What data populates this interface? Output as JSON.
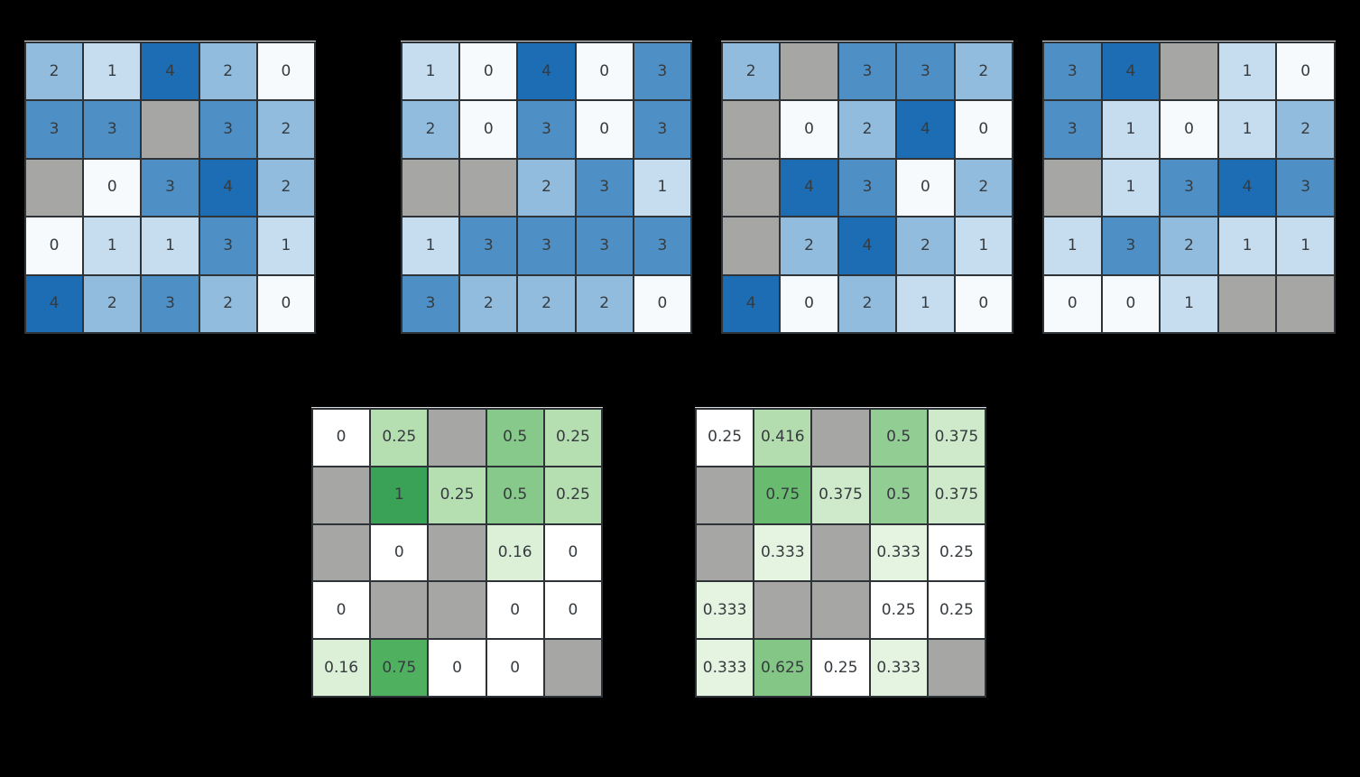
{
  "page": {
    "background_color": "#000000",
    "description_visible_text_only": true
  },
  "style": {
    "gridline_color": "#2e3338",
    "masked_cell_color": "#a6a6a5",
    "cell_text_color": "#363b3f"
  },
  "palettes": {
    "blues": {
      "0": "#f6fafd",
      "1": "#c6dcef",
      "2": "#92bcde",
      "3": "#4e90c6",
      "4": "#1c6db4"
    },
    "greens_left": {
      "0": "#ffffff",
      "0.16": "#dcf0d8",
      "0.25": "#b6dfb1",
      "0.5": "#87c98a",
      "0.75": "#4fb160",
      "1": "#3aa257"
    },
    "greens_right": {
      "0.25": "#ffffff",
      "0.333": "#e5f4e0",
      "0.375": "#cfeaca",
      "0.416": "#b3ddaf",
      "0.5": "#92cd93",
      "0.625": "#83c685",
      "0.75": "#69bc6f"
    }
  },
  "chart_data": [
    {
      "type": "heatmap",
      "name": "count-heatmap-1",
      "grid_size": [
        5,
        5
      ],
      "colormap": "blues",
      "value_range": [
        0,
        4
      ],
      "masked_cells_shown_gray": true,
      "values": [
        [
          2,
          1,
          4,
          2,
          0
        ],
        [
          3,
          3,
          null,
          3,
          2
        ],
        [
          null,
          0,
          3,
          4,
          2
        ],
        [
          0,
          1,
          1,
          3,
          1
        ],
        [
          4,
          2,
          3,
          2,
          0
        ]
      ]
    },
    {
      "type": "heatmap",
      "name": "count-heatmap-2",
      "grid_size": [
        5,
        5
      ],
      "colormap": "blues",
      "value_range": [
        0,
        4
      ],
      "masked_cells_shown_gray": true,
      "values": [
        [
          1,
          0,
          4,
          0,
          3
        ],
        [
          2,
          0,
          3,
          0,
          3
        ],
        [
          null,
          null,
          2,
          3,
          1
        ],
        [
          1,
          3,
          3,
          3,
          3
        ],
        [
          3,
          2,
          2,
          2,
          0
        ]
      ]
    },
    {
      "type": "heatmap",
      "name": "count-heatmap-3",
      "grid_size": [
        5,
        5
      ],
      "colormap": "blues",
      "value_range": [
        0,
        4
      ],
      "masked_cells_shown_gray": true,
      "values": [
        [
          2,
          null,
          3,
          3,
          2
        ],
        [
          null,
          0,
          2,
          4,
          0
        ],
        [
          null,
          4,
          3,
          0,
          2
        ],
        [
          null,
          2,
          4,
          2,
          1
        ],
        [
          4,
          0,
          2,
          1,
          0
        ]
      ]
    },
    {
      "type": "heatmap",
      "name": "count-heatmap-4",
      "grid_size": [
        5,
        5
      ],
      "colormap": "blues",
      "value_range": [
        0,
        4
      ],
      "masked_cells_shown_gray": true,
      "values": [
        [
          3,
          4,
          null,
          1,
          0
        ],
        [
          3,
          1,
          0,
          1,
          2
        ],
        [
          null,
          1,
          3,
          4,
          3
        ],
        [
          1,
          3,
          2,
          1,
          1
        ],
        [
          0,
          0,
          1,
          null,
          null
        ]
      ]
    },
    {
      "type": "heatmap",
      "name": "ratio-heatmap-left",
      "grid_size": [
        5,
        5
      ],
      "colormap": "greens_left",
      "value_range": [
        0,
        1
      ],
      "masked_cells_shown_gray": true,
      "values": [
        [
          0,
          0.25,
          null,
          0.5,
          0.25
        ],
        [
          null,
          1,
          0.25,
          0.5,
          0.25
        ],
        [
          null,
          0,
          null,
          0.16,
          0
        ],
        [
          0,
          null,
          null,
          0,
          0
        ],
        [
          0.16,
          0.75,
          0,
          0,
          null
        ]
      ]
    },
    {
      "type": "heatmap",
      "name": "ratio-heatmap-right",
      "grid_size": [
        5,
        5
      ],
      "colormap": "greens_right",
      "value_range": [
        0.25,
        0.75
      ],
      "masked_cells_shown_gray": true,
      "values": [
        [
          0.25,
          0.416,
          null,
          0.5,
          0.375
        ],
        [
          null,
          0.75,
          0.375,
          0.5,
          0.375
        ],
        [
          null,
          0.333,
          null,
          0.333,
          0.25
        ],
        [
          0.333,
          null,
          null,
          0.25,
          0.25
        ],
        [
          0.333,
          0.625,
          0.25,
          0.333,
          null
        ]
      ]
    }
  ]
}
